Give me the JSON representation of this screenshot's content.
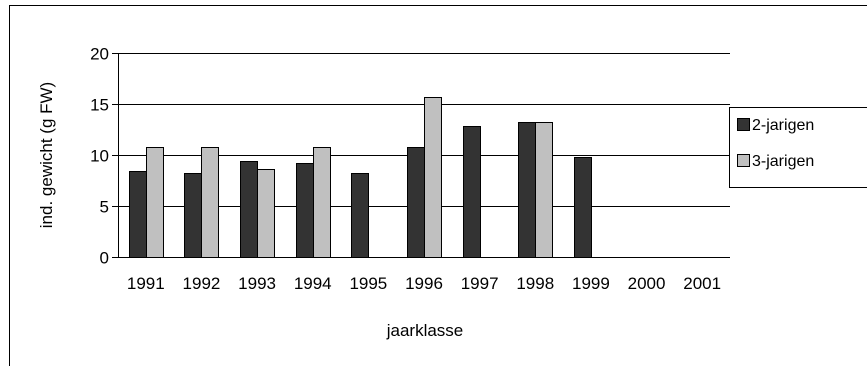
{
  "chart_data": {
    "type": "bar",
    "title": "",
    "xlabel": "jaarklasse",
    "ylabel": "ind. gewicht (g FW)",
    "ylim": [
      0,
      20
    ],
    "yticks": [
      "0",
      "5",
      "10",
      "15",
      "20"
    ],
    "categories": [
      "1991",
      "1992",
      "1993",
      "1994",
      "1995",
      "1996",
      "1997",
      "1998",
      "1999",
      "2000",
      "2001"
    ],
    "series": [
      {
        "name": "2-jarigen",
        "color": "#333333",
        "values": [
          8.4,
          8.2,
          9.4,
          9.2,
          8.2,
          10.8,
          12.8,
          13.2,
          9.8,
          null,
          null
        ]
      },
      {
        "name": "3-jarigen",
        "color": "#c0c0c0",
        "values": [
          10.8,
          10.8,
          8.6,
          10.8,
          null,
          15.7,
          null,
          13.2,
          null,
          null,
          null
        ]
      }
    ],
    "grid": true,
    "legend_position": "right"
  }
}
